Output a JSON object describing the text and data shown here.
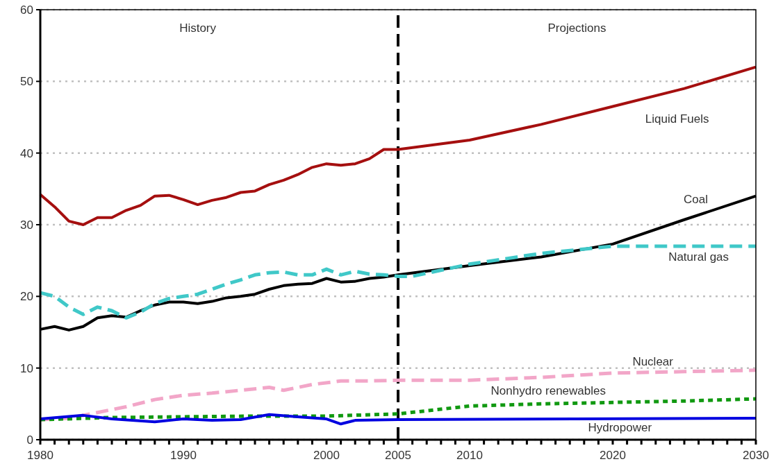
{
  "chart_data": {
    "type": "line",
    "xlim": [
      1980,
      2030
    ],
    "ylim": [
      0,
      60
    ],
    "xticks": [
      1980,
      {
        "value": 1981,
        "label": null
      },
      {
        "value": 1982,
        "label": null
      },
      {
        "value": 1983,
        "label": null
      },
      {
        "value": 1984,
        "label": null
      },
      {
        "value": 1985,
        "label": null
      },
      {
        "value": 1986,
        "label": null
      },
      {
        "value": 1987,
        "label": null
      },
      {
        "value": 1988,
        "label": null
      },
      {
        "value": 1989,
        "label": null
      },
      1990,
      {
        "value": 1991,
        "label": null
      },
      {
        "value": 1992,
        "label": null
      },
      {
        "value": 1993,
        "label": null
      },
      {
        "value": 1994,
        "label": null
      },
      {
        "value": 1995,
        "label": null
      },
      {
        "value": 1996,
        "label": null
      },
      {
        "value": 1997,
        "label": null
      },
      {
        "value": 1998,
        "label": null
      },
      {
        "value": 1999,
        "label": null
      },
      2000,
      {
        "value": 2001,
        "label": null
      },
      {
        "value": 2002,
        "label": null
      },
      {
        "value": 2003,
        "label": null
      },
      {
        "value": 2004,
        "label": null
      },
      2005,
      {
        "value": 2006,
        "label": null
      },
      {
        "value": 2007,
        "label": null
      },
      {
        "value": 2008,
        "label": null
      },
      {
        "value": 2009,
        "label": null
      },
      2010,
      {
        "value": 2011,
        "label": null
      },
      {
        "value": 2012,
        "label": null
      },
      {
        "value": 2013,
        "label": null
      },
      {
        "value": 2014,
        "label": null
      },
      {
        "value": 2015,
        "label": null
      },
      {
        "value": 2016,
        "label": null
      },
      {
        "value": 2017,
        "label": null
      },
      {
        "value": 2018,
        "label": null
      },
      {
        "value": 2019,
        "label": null
      },
      2020,
      {
        "value": 2021,
        "label": null
      },
      {
        "value": 2022,
        "label": null
      },
      {
        "value": 2023,
        "label": null
      },
      {
        "value": 2024,
        "label": null
      },
      {
        "value": 2025,
        "label": null
      },
      {
        "value": 2026,
        "label": null
      },
      {
        "value": 2027,
        "label": null
      },
      {
        "value": 2028,
        "label": null
      },
      {
        "value": 2029,
        "label": null
      },
      2030
    ],
    "yticks": [
      0,
      10,
      20,
      30,
      40,
      50,
      60
    ],
    "grid": "y",
    "annotations": [
      "History",
      "Projections"
    ],
    "ref_lines": [
      {
        "axis": "x",
        "value": 2005,
        "color": "#000000",
        "line_style": "dashed"
      }
    ],
    "series": [
      {
        "name": "Liquid Fuels",
        "color": "#a50f0f",
        "line_style": "solid",
        "x": [
          1980,
          1981,
          1982,
          1983,
          1984,
          1985,
          1986,
          1987,
          1988,
          1989,
          1990,
          1991,
          1992,
          1993,
          1994,
          1995,
          1996,
          1997,
          1998,
          1999,
          2000,
          2001,
          2002,
          2003,
          2004,
          2005,
          2010,
          2015,
          2020,
          2025,
          2030
        ],
        "values": [
          34.2,
          32.5,
          30.5,
          30,
          31,
          31,
          32,
          32.7,
          34,
          34.1,
          33.5,
          32.8,
          33.4,
          33.8,
          34.5,
          34.7,
          35.6,
          36.2,
          37,
          38,
          38.5,
          38.3,
          38.5,
          39.2,
          40.5,
          40.5,
          41.8,
          44,
          46.5,
          49,
          52
        ]
      },
      {
        "name": "Coal",
        "color": "#000000",
        "line_style": "solid",
        "x": [
          1980,
          1981,
          1982,
          1983,
          1984,
          1985,
          1986,
          1987,
          1988,
          1989,
          1990,
          1991,
          1992,
          1993,
          1994,
          1995,
          1996,
          1997,
          1998,
          1999,
          2000,
          2001,
          2002,
          2003,
          2004,
          2005,
          2010,
          2015,
          2020,
          2025,
          2030
        ],
        "values": [
          15.4,
          15.8,
          15.3,
          15.8,
          17,
          17.3,
          17.1,
          18,
          18.8,
          19.2,
          19.2,
          19,
          19.3,
          19.8,
          20,
          20.3,
          21,
          21.5,
          21.7,
          21.8,
          22.5,
          22,
          22.1,
          22.5,
          22.7,
          23,
          24.3,
          25.5,
          27.3,
          30.7,
          34
        ]
      },
      {
        "name": "Natural gas",
        "color": "#40c8c8",
        "line_style": "dashed",
        "x": [
          1980,
          1981,
          1982,
          1983,
          1984,
          1985,
          1986,
          1987,
          1988,
          1989,
          1990,
          1991,
          1992,
          1993,
          1994,
          1995,
          1996,
          1997,
          1998,
          1999,
          2000,
          2001,
          2002,
          2003,
          2004,
          2005,
          2006,
          2010,
          2015,
          2020,
          2025,
          2030
        ],
        "values": [
          20.5,
          20,
          18.5,
          17.5,
          18.5,
          18,
          17,
          17.8,
          19,
          19.7,
          20,
          20.3,
          21,
          21.7,
          22.3,
          23,
          23.3,
          23.4,
          23,
          23,
          23.8,
          23,
          23.5,
          23.1,
          23,
          22.8,
          22.8,
          24.5,
          26,
          27,
          27,
          27
        ]
      },
      {
        "name": "Nuclear",
        "color": "#f2a6c8",
        "line_style": "dashed",
        "x": [
          1980,
          1982,
          1984,
          1986,
          1988,
          1990,
          1992,
          1994,
          1996,
          1997,
          1999,
          2001,
          2003,
          2005,
          2010,
          2015,
          2020,
          2025,
          2030
        ],
        "values": [
          2.8,
          3,
          3.8,
          4.6,
          5.6,
          6.2,
          6.5,
          6.9,
          7.3,
          6.9,
          7.7,
          8.2,
          8.2,
          8.3,
          8.3,
          8.7,
          9.3,
          9.5,
          9.7
        ]
      },
      {
        "name": "Nonhydro renewables",
        "color": "#119911",
        "line_style": "dotted",
        "x": [
          1980,
          1985,
          1990,
          1995,
          2000,
          2005,
          2010,
          2015,
          2020,
          2025,
          2030
        ],
        "values": [
          2.8,
          3.1,
          3.2,
          3.3,
          3.3,
          3.6,
          4.7,
          5,
          5.2,
          5.4,
          5.7
        ]
      },
      {
        "name": "Hydropower",
        "color": "#0000e0",
        "line_style": "solid",
        "x": [
          1980,
          1983,
          1985,
          1988,
          1990,
          1992,
          1994,
          1996,
          1998,
          2000,
          2001,
          2002,
          2005,
          2030
        ],
        "values": [
          2.9,
          3.4,
          2.9,
          2.5,
          2.9,
          2.7,
          2.8,
          3.5,
          3.2,
          2.9,
          2.2,
          2.7,
          2.8,
          3
        ]
      }
    ]
  }
}
